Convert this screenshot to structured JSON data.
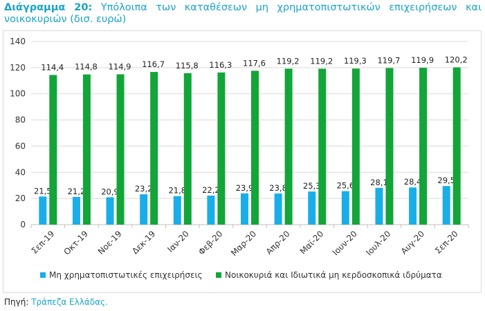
{
  "title_prefix": "Διάγραμμα 20:",
  "title_text": "Υπόλοιπα των καταθέσεων μη χρηματοπιστωτικών επιχειρήσεων και νοικοκυριών (δισ. ευρώ)",
  "source_label": "Πηγή:",
  "source_name": "Τράπεζα Ελλάδας.",
  "colors": {
    "series1": "#1aaee8",
    "series2": "#13a538",
    "title": "#1aa3c9"
  },
  "chart_data": {
    "type": "bar",
    "categories": [
      "Σεπ-19",
      "Οκτ-19",
      "Νοε-19",
      "Δεκ-19",
      "Ιαν-20",
      "Φεβ-20",
      "Μαρ-20",
      "Απρ-20",
      "Μαϊ-20",
      "Ιουν-20",
      "Ιουλ-20",
      "Αυγ-20",
      "Σεπ-20"
    ],
    "series": [
      {
        "name": "Μη χρηματοπιστωτικές επιχειρήσεις",
        "values": [
          21.5,
          21.2,
          20.9,
          23.2,
          21.8,
          22.2,
          23.9,
          23.8,
          25.3,
          25.6,
          28.1,
          28.4,
          29.5
        ],
        "labels": [
          "21,5",
          "21,2",
          "20,9",
          "23,2",
          "21,8",
          "22,2",
          "23,9",
          "23,8",
          "25,3",
          "25,6",
          "28,1",
          "28,4",
          "29,5"
        ]
      },
      {
        "name": "Νοικοκυριά και Ιδιωτικά μη κερδοσκοπικά ιδρύματα",
        "values": [
          114.4,
          114.8,
          114.9,
          116.7,
          115.8,
          116.3,
          117.6,
          119.2,
          119.2,
          119.3,
          119.7,
          119.9,
          120.2
        ],
        "labels": [
          "114,4",
          "114,8",
          "114,9",
          "116,7",
          "115,8",
          "116,3",
          "117,6",
          "119,2",
          "119,2",
          "119,3",
          "119,7",
          "119,9",
          "120,2"
        ]
      }
    ],
    "ylim": [
      0,
      140
    ],
    "yticks": [
      0,
      20,
      40,
      60,
      80,
      100,
      120,
      140
    ],
    "grid": true,
    "legend": "bottom"
  }
}
